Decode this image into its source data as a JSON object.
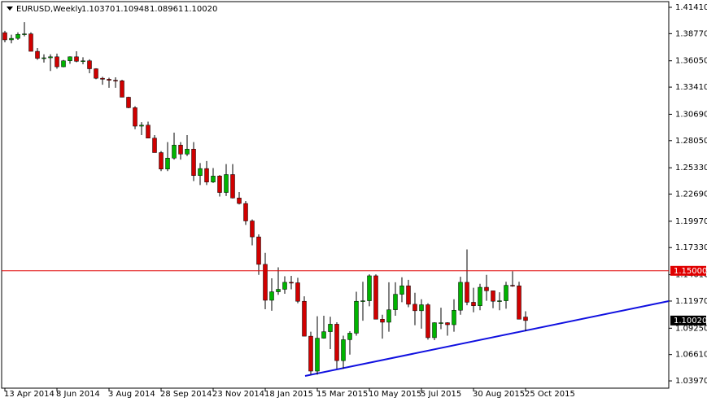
{
  "chart_data": {
    "type": "candlestick",
    "symbol": "EURUSD,Weekly",
    "header_values": [
      "1.10370",
      "1.10948",
      "1.08961",
      "1.10020"
    ],
    "categories": [
      "13 Apr 2014",
      null,
      null,
      null,
      null,
      null,
      null,
      null,
      "8 Jun 2014",
      null,
      null,
      null,
      null,
      null,
      null,
      null,
      "3 Aug 2014",
      null,
      null,
      null,
      null,
      null,
      null,
      null,
      "28 Sep 2014",
      null,
      null,
      null,
      null,
      null,
      null,
      null,
      "23 Nov 2014",
      null,
      null,
      null,
      null,
      null,
      null,
      null,
      "18 Jan 2015",
      null,
      null,
      null,
      null,
      null,
      null,
      null,
      "15 Mar 2015",
      null,
      null,
      null,
      null,
      null,
      null,
      null,
      "10 May 2015",
      null,
      null,
      null,
      null,
      null,
      null,
      null,
      "5 Jul 2015",
      null,
      null,
      null,
      null,
      null,
      null,
      null,
      "30 Aug 2015",
      null,
      null,
      null,
      null,
      null,
      null,
      null,
      "25 Oct 2015"
    ],
    "open": [
      1.3887,
      1.3815,
      1.383,
      1.387,
      1.3875,
      1.37,
      1.363,
      1.3635,
      1.3645,
      1.3545,
      1.3605,
      1.3645,
      1.36,
      1.3605,
      1.3525,
      1.343,
      1.342,
      1.341,
      1.3405,
      1.324,
      1.3135,
      1.295,
      1.296,
      1.283,
      1.2685,
      1.252,
      1.263,
      1.276,
      1.267,
      1.272,
      1.2455,
      1.2525,
      1.239,
      1.245,
      1.2285,
      1.2465,
      1.223,
      1.2175,
      1.2,
      1.184,
      1.1565,
      1.1205,
      1.129,
      1.1315,
      1.1385,
      1.138,
      1.1195,
      1.0845,
      1.0495,
      1.0825,
      1.089,
      1.0965,
      1.06,
      1.081,
      1.0875,
      1.1195,
      1.12,
      1.145,
      1.1015,
      1.0985,
      1.111,
      1.1265,
      1.135,
      1.1165,
      1.11,
      1.116,
      1.083,
      1.098,
      1.098,
      1.096,
      1.1105,
      1.1385,
      1.1185,
      1.115,
      1.1335,
      1.13,
      1.1195,
      1.12,
      1.1355,
      1.135,
      1.1037
    ],
    "high": [
      1.3905,
      1.3867,
      1.389,
      1.3993,
      1.389,
      1.3733,
      1.367,
      1.367,
      1.3677,
      1.3614,
      1.365,
      1.37,
      1.364,
      1.362,
      1.353,
      1.3445,
      1.3435,
      1.344,
      1.3415,
      1.3245,
      1.315,
      1.299,
      1.2995,
      1.286,
      1.27,
      1.279,
      1.2885,
      1.279,
      1.286,
      1.279,
      1.258,
      1.26,
      1.253,
      1.246,
      1.257,
      1.257,
      1.229,
      1.22,
      1.2015,
      1.1865,
      1.168,
      1.1425,
      1.1535,
      1.1445,
      1.145,
      1.143,
      1.1245,
      1.089,
      1.1045,
      1.105,
      1.104,
      1.0985,
      1.085,
      1.0895,
      1.129,
      1.139,
      1.1465,
      1.1465,
      1.106,
      1.1385,
      1.1385,
      1.1435,
      1.141,
      1.128,
      1.1215,
      1.1175,
      1.0985,
      1.113,
      1.0985,
      1.1215,
      1.144,
      1.1715,
      1.133,
      1.137,
      1.146,
      1.13,
      1.1285,
      1.139,
      1.1495,
      1.139,
      1.1095
    ],
    "low": [
      1.379,
      1.378,
      1.3815,
      1.385,
      1.37,
      1.3615,
      1.3587,
      1.3503,
      1.3525,
      1.354,
      1.3575,
      1.359,
      1.357,
      1.348,
      1.342,
      1.3365,
      1.3335,
      1.3335,
      1.324,
      1.313,
      1.292,
      1.286,
      1.2835,
      1.2685,
      1.25,
      1.25,
      1.2615,
      1.2615,
      1.265,
      1.24,
      1.236,
      1.236,
      1.238,
      1.2245,
      1.225,
      1.2225,
      1.2165,
      1.196,
      1.1755,
      1.146,
      1.1115,
      1.11,
      1.126,
      1.127,
      1.1315,
      1.1175,
      1.0845,
      1.046,
      1.046,
      1.082,
      1.0715,
      1.052,
      1.052,
      1.066,
      1.085,
      1.1,
      1.1145,
      1.102,
      1.082,
      1.089,
      1.105,
      1.1185,
      1.1135,
      1.0955,
      1.092,
      1.081,
      1.0805,
      1.0915,
      1.085,
      1.089,
      1.106,
      1.1155,
      1.1085,
      1.1105,
      1.12,
      1.1125,
      1.1105,
      1.112,
      1.134,
      1.1015,
      1.0896
    ],
    "close": [
      1.3815,
      1.383,
      1.387,
      1.3875,
      1.37,
      1.363,
      1.3635,
      1.3645,
      1.3545,
      1.3605,
      1.3645,
      1.36,
      1.3605,
      1.3525,
      1.343,
      1.342,
      1.341,
      1.3405,
      1.324,
      1.3135,
      1.295,
      1.296,
      1.283,
      1.2685,
      1.252,
      1.263,
      1.276,
      1.267,
      1.272,
      1.2455,
      1.2525,
      1.239,
      1.245,
      1.2285,
      1.2465,
      1.223,
      1.2175,
      1.2,
      1.184,
      1.1565,
      1.1205,
      1.129,
      1.1315,
      1.1385,
      1.138,
      1.1195,
      1.0845,
      1.0495,
      1.0825,
      1.089,
      1.0965,
      1.06,
      1.081,
      1.0875,
      1.1195,
      1.12,
      1.145,
      1.1015,
      1.0985,
      1.111,
      1.1265,
      1.135,
      1.1165,
      1.11,
      1.116,
      1.083,
      1.098,
      1.098,
      1.096,
      1.1105,
      1.1385,
      1.1185,
      1.115,
      1.1335,
      1.13,
      1.1195,
      1.12,
      1.1355,
      1.135,
      1.1015,
      1.1002
    ],
    "up_color": "#00b400",
    "down_color": "#d00000",
    "wick_color": "#000000",
    "ylim": [
      1.0324,
      1.4198
    ],
    "yticks": [
      {
        "value": 1.0397,
        "label": "1.03970"
      },
      {
        "value": 1.0661,
        "label": "1.06610"
      },
      {
        "value": 1.0925,
        "label": "1.09250"
      },
      {
        "value": 1.1197,
        "label": "1.11970"
      },
      {
        "value": 1.1461,
        "label": "1.14610"
      },
      {
        "value": 1.1733,
        "label": "1.17330"
      },
      {
        "value": 1.1997,
        "label": "1.19970"
      },
      {
        "value": 1.2269,
        "label": "1.22690"
      },
      {
        "value": 1.2533,
        "label": "1.25330"
      },
      {
        "value": 1.2805,
        "label": "1.28050"
      },
      {
        "value": 1.3069,
        "label": "1.30690"
      },
      {
        "value": 1.3341,
        "label": "1.33410"
      },
      {
        "value": 1.3605,
        "label": "1.36050"
      },
      {
        "value": 1.3877,
        "label": "1.38770"
      },
      {
        "value": 1.4141,
        "label": "1.41410"
      }
    ],
    "hline": {
      "value": 1.15,
      "label": "1.15000",
      "color": "#e00000"
    },
    "last_price": {
      "value": 1.1002,
      "label": "1.10020"
    }
  }
}
